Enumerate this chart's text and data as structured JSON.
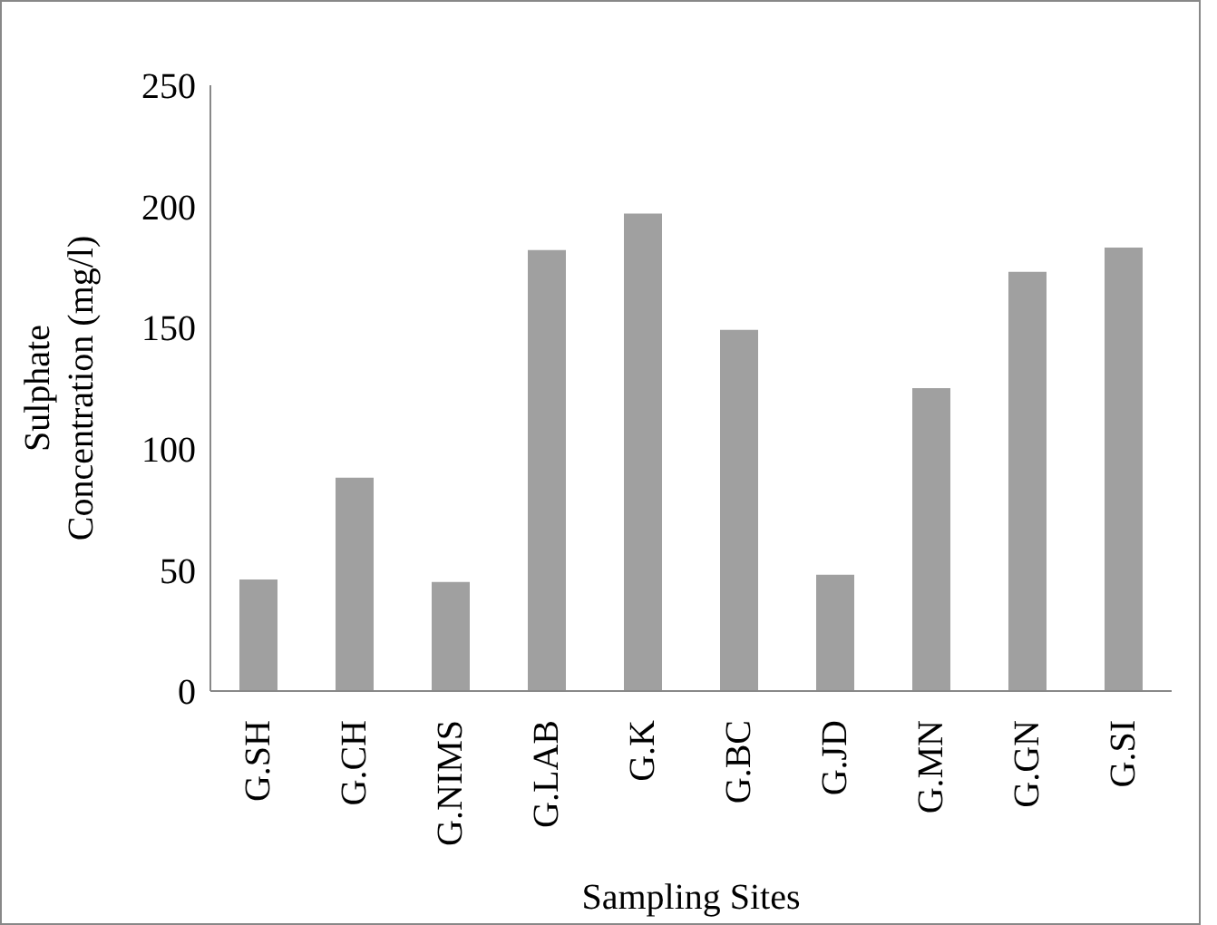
{
  "chart_data": {
    "type": "bar",
    "xlabel": "Sampling Sites",
    "ylabel": "Sulphate Concentration (mg/l)",
    "categories": [
      "G.SH",
      "G.CH",
      "G.NIMS",
      "G.LAB",
      "G.K",
      "G.BC",
      "G.JD",
      "G.MN",
      "G.GN",
      "G.SI"
    ],
    "values": [
      46,
      88,
      45,
      182,
      197,
      149,
      48,
      125,
      173,
      183
    ],
    "color": "#a0a0a0",
    "ylim": [
      0,
      250
    ],
    "yticks": [
      0,
      50,
      100,
      150,
      200,
      250
    ],
    "grid": false,
    "legend": false
  }
}
